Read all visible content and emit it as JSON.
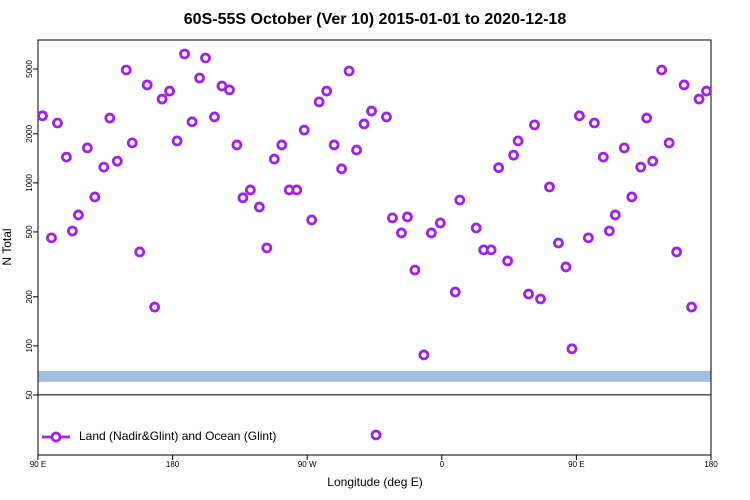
{
  "chart_data": {
    "type": "scatter",
    "title": "60S-55S October (Ver 10)   2015-01-01 to 2020-12-18",
    "x_label": "Longitude (deg E)",
    "y_label": "N Total",
    "log_y": true,
    "xlim": [
      90,
      540
    ],
    "ylim": [
      21.4,
      7530
    ],
    "xticks": [
      {
        "value": 90,
        "label": "90 E"
      },
      180,
      {
        "value": 270,
        "label": "90 W"
      },
      {
        "value": 360,
        "label": "0"
      },
      {
        "value": 450,
        "label": "90 E"
      },
      {
        "value": 540,
        "label": "180"
      }
    ],
    "yticks": [
      50,
      100,
      200,
      500,
      1000,
      2000,
      5000
    ],
    "reference_line": 50,
    "band": {
      "value": 65,
      "color": "#a3bde3"
    },
    "legend_position": "bottom-left",
    "series": [
      {
        "name": "Land (Nadir&Glint) and Ocean (Glint)",
        "color": "#a020f0",
        "x": [
          93,
          99,
          103,
          109,
          113,
          117,
          123,
          128,
          134,
          138,
          143,
          149,
          153,
          158,
          163,
          168,
          173,
          178,
          183,
          188,
          193,
          198,
          202,
          208,
          213,
          218,
          223,
          227,
          232,
          238,
          243,
          248,
          253,
          258,
          263,
          268,
          273,
          278,
          283,
          288,
          293,
          298,
          303,
          308,
          313,
          316,
          323,
          327,
          333,
          337,
          342,
          348,
          353,
          359,
          369,
          372,
          383,
          388,
          393,
          398,
          404,
          408,
          411,
          418,
          422,
          426,
          432,
          438,
          443,
          447,
          452,
          458,
          462,
          468,
          472,
          476,
          482,
          487,
          493,
          497,
          501,
          507,
          512,
          517,
          522,
          527,
          532,
          537
        ],
        "values": [
          2580,
          460,
          2330,
          1440,
          507,
          636,
          1640,
          820,
          1250,
          2500,
          1360,
          4930,
          1760,
          377,
          3990,
          173,
          3270,
          3660,
          1810,
          6180,
          2370,
          4400,
          5840,
          2540,
          3930,
          3720,
          1710,
          810,
          905,
          711,
          399,
          1400,
          1710,
          905,
          905,
          2110,
          593,
          3140,
          3660,
          1710,
          1220,
          4860,
          1590,
          2300,
          2760,
          28.4,
          2540,
          610,
          493,
          618,
          292,
          88,
          493,
          568,
          214,
          785,
          529,
          388,
          388,
          1240,
          332,
          1480,
          1810,
          208,
          2270,
          194,
          944,
          428,
          305,
          96,
          2580,
          460,
          2330,
          1440,
          507,
          636,
          1640,
          820,
          1250,
          2500,
          1360,
          4930,
          1760,
          377,
          3990,
          173,
          3270,
          3660
        ]
      }
    ]
  }
}
